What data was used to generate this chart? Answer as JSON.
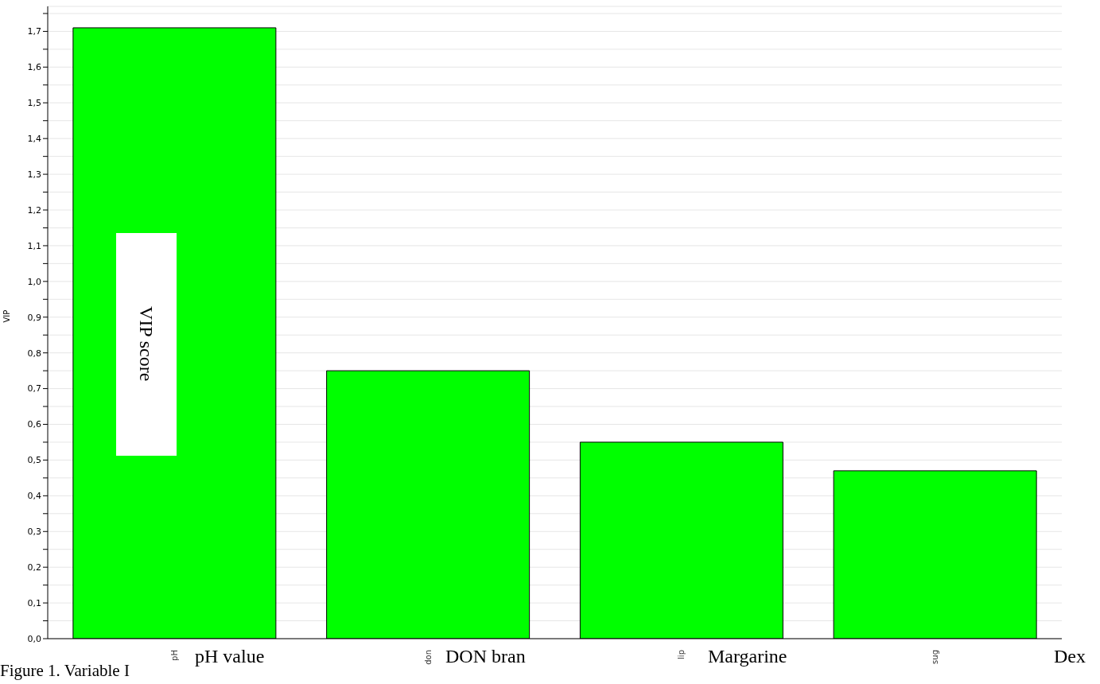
{
  "chart_data": {
    "type": "bar",
    "ylabel": "VIP",
    "categories": [
      "pH",
      "don",
      "lip",
      "sug"
    ],
    "values": [
      1.71,
      0.75,
      0.55,
      0.47
    ],
    "color": "#00ff00",
    "ylim": [
      0,
      1.77
    ],
    "yticks": [
      {
        "value": 0,
        "label": "0,0"
      },
      {
        "value": 0.05,
        "label": null
      },
      {
        "value": 0.1,
        "label": "0,1"
      },
      {
        "value": 0.15,
        "label": null
      },
      {
        "value": 0.2,
        "label": "0,2"
      },
      {
        "value": 0.25,
        "label": null
      },
      {
        "value": 0.3,
        "label": "0,3"
      },
      {
        "value": 0.35,
        "label": null
      },
      {
        "value": 0.4,
        "label": "0,4"
      },
      {
        "value": 0.45,
        "label": null
      },
      {
        "value": 0.5,
        "label": "0,5"
      },
      {
        "value": 0.55,
        "label": null
      },
      {
        "value": 0.6,
        "label": "0,6"
      },
      {
        "value": 0.65,
        "label": null
      },
      {
        "value": 0.7,
        "label": "0,7"
      },
      {
        "value": 0.75,
        "label": null
      },
      {
        "value": 0.8,
        "label": "0,8"
      },
      {
        "value": 0.85,
        "label": null
      },
      {
        "value": 0.9,
        "label": "0,9"
      },
      {
        "value": 0.95,
        "label": null
      },
      {
        "value": 1.0,
        "label": "1,0"
      },
      {
        "value": 1.05,
        "label": null
      },
      {
        "value": 1.1,
        "label": "1,1"
      },
      {
        "value": 1.15,
        "label": null
      },
      {
        "value": 1.2,
        "label": "1,2"
      },
      {
        "value": 1.25,
        "label": null
      },
      {
        "value": 1.3,
        "label": "1,3"
      },
      {
        "value": 1.35,
        "label": null
      },
      {
        "value": 1.4,
        "label": "1,4"
      },
      {
        "value": 1.45,
        "label": null
      },
      {
        "value": 1.5,
        "label": "1,5"
      },
      {
        "value": 1.55,
        "label": null
      },
      {
        "value": 1.6,
        "label": "1,6"
      },
      {
        "value": 1.65,
        "label": null
      },
      {
        "value": 1.7,
        "label": "1,7"
      },
      {
        "value": 1.75,
        "label": null
      }
    ],
    "grid": "y",
    "annotations": [
      "VIP score",
      "pH value",
      "DON bran",
      "Margarine",
      "Dex",
      "Figure 1. Variable I"
    ]
  }
}
